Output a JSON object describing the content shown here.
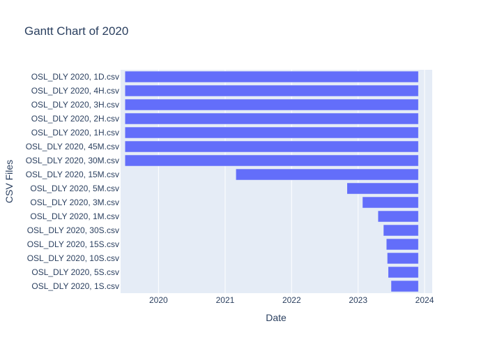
{
  "chart_data": {
    "type": "bar",
    "orientation": "horizontal",
    "title": "Gantt Chart of 2020",
    "xlabel": "Date",
    "ylabel": "CSV Files",
    "x_ticks": [
      "2020",
      "2021",
      "2022",
      "2023",
      "2024"
    ],
    "xlim": [
      "2019-06-07",
      "2024-02-12"
    ],
    "grid": true,
    "legend": "none",
    "colors": {
      "bar": "#636efa",
      "plot_bg": "#e5ecf6",
      "grid": "#ffffff",
      "text": "#2a3f5f"
    },
    "categories": [
      "OSL_DLY 2020, 1D.csv",
      "OSL_DLY 2020, 4H.csv",
      "OSL_DLY 2020, 3H.csv",
      "OSL_DLY 2020, 2H.csv",
      "OSL_DLY 2020, 1H.csv",
      "OSL_DLY 2020, 45M.csv",
      "OSL_DLY 2020, 30M.csv",
      "OSL_DLY 2020, 15M.csv",
      "OSL_DLY 2020, 5M.csv",
      "OSL_DLY 2020, 3M.csv",
      "OSL_DLY 2020, 1M.csv",
      "OSL_DLY 2020, 30S.csv",
      "OSL_DLY 2020, 15S.csv",
      "OSL_DLY 2020, 10S.csv",
      "OSL_DLY 2020, 5S.csv",
      "OSL_DLY 2020, 1S.csv"
    ],
    "tasks": [
      {
        "start": "2019-07-01",
        "end": "2023-11-28"
      },
      {
        "start": "2019-07-01",
        "end": "2023-11-28"
      },
      {
        "start": "2019-07-01",
        "end": "2023-11-28"
      },
      {
        "start": "2019-07-01",
        "end": "2023-11-28"
      },
      {
        "start": "2019-07-01",
        "end": "2023-11-28"
      },
      {
        "start": "2019-07-01",
        "end": "2023-11-28"
      },
      {
        "start": "2019-07-01",
        "end": "2023-11-28"
      },
      {
        "start": "2021-03-01",
        "end": "2023-11-28"
      },
      {
        "start": "2022-11-01",
        "end": "2023-11-28"
      },
      {
        "start": "2023-01-25",
        "end": "2023-11-28"
      },
      {
        "start": "2023-04-20",
        "end": "2023-11-28"
      },
      {
        "start": "2023-05-20",
        "end": "2023-11-28"
      },
      {
        "start": "2023-06-05",
        "end": "2023-11-28"
      },
      {
        "start": "2023-06-10",
        "end": "2023-11-28"
      },
      {
        "start": "2023-06-15",
        "end": "2023-11-28"
      },
      {
        "start": "2023-07-01",
        "end": "2023-11-28"
      }
    ]
  }
}
